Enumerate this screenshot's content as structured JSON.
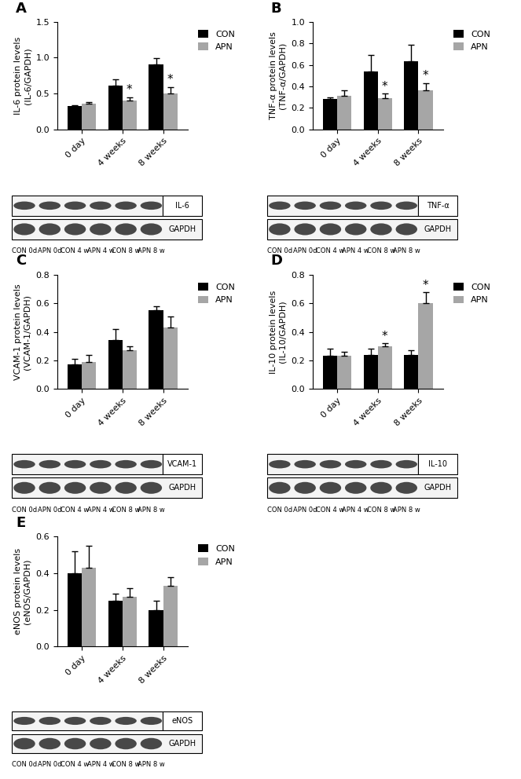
{
  "chart_data": [
    {
      "type": "bar",
      "title": "A",
      "y_label": "IL-6 protein levels\n(IL-6/GAPDH)",
      "categories": [
        "0 day",
        "4 weeks",
        "8 weeks"
      ],
      "series": [
        {
          "name": "CON",
          "color": "#000000",
          "values": [
            0.32,
            0.61,
            0.91
          ],
          "errors": [
            0.02,
            0.09,
            0.08
          ]
        },
        {
          "name": "APN",
          "color": "#a6a6a6",
          "values": [
            0.36,
            0.4,
            0.5
          ],
          "errors": [
            0.02,
            0.05,
            0.09
          ]
        }
      ],
      "ylim": [
        0,
        1.5
      ],
      "yticks": [
        {
          "value": 0,
          "label": "0.0"
        },
        0.5,
        {
          "value": 1,
          "label": "1.0"
        },
        1.5
      ],
      "legend": "upper left",
      "annotations": [
        {
          "text": "*",
          "category": "4 weeks",
          "series": "APN"
        },
        {
          "text": "*",
          "category": "8 weeks",
          "series": "APN"
        }
      ],
      "blot": {
        "bands": [
          "IL-6",
          "GAPDH"
        ],
        "lanes": [
          "CON 0d",
          "APN 0d",
          "CON 4 w",
          "APN 4 w",
          "CON 8 w",
          "APN 8 w"
        ]
      }
    },
    {
      "type": "bar",
      "title": "B",
      "y_label": "TNF-α protein levels\n(TNF-α/GAPDH)",
      "categories": [
        "0 day",
        "4 weeks",
        "8 weeks"
      ],
      "series": [
        {
          "name": "CON",
          "color": "#000000",
          "values": [
            0.28,
            0.54,
            0.63
          ],
          "errors": [
            0.02,
            0.15,
            0.16
          ]
        },
        {
          "name": "APN",
          "color": "#a6a6a6",
          "values": [
            0.31,
            0.29,
            0.36
          ],
          "errors": [
            0.05,
            0.04,
            0.07
          ]
        }
      ],
      "ylim": [
        0,
        1.0
      ],
      "yticks": [
        {
          "value": 0,
          "label": "0.0"
        },
        0.2,
        0.4,
        0.6,
        0.8,
        {
          "value": 1,
          "label": "1.0"
        }
      ],
      "legend": "upper left",
      "annotations": [
        {
          "text": "*",
          "category": "4 weeks",
          "series": "APN"
        },
        {
          "text": "*",
          "category": "8 weeks",
          "series": "APN"
        }
      ],
      "blot": {
        "bands": [
          "TNF-α",
          "GAPDH"
        ],
        "lanes": [
          "CON 0d",
          "APN 0d",
          "CON 4 w",
          "APN 4 w",
          "CON 8 w",
          "APN 8 w"
        ]
      }
    },
    {
      "type": "bar",
      "title": "C",
      "y_label": "VCAM-1 protein levels\n(VCAM-1/GAPDH)",
      "categories": [
        "0 day",
        "4 weeks",
        "8 weeks"
      ],
      "series": [
        {
          "name": "CON",
          "color": "#000000",
          "values": [
            0.17,
            0.34,
            0.55
          ],
          "errors": [
            0.04,
            0.08,
            0.03
          ]
        },
        {
          "name": "APN",
          "color": "#a6a6a6",
          "values": [
            0.19,
            0.27,
            0.43
          ],
          "errors": [
            0.05,
            0.03,
            0.08
          ]
        }
      ],
      "ylim": [
        0,
        0.8
      ],
      "yticks": [
        {
          "value": 0,
          "label": "0.0"
        },
        0.2,
        0.4,
        0.6,
        0.8
      ],
      "legend": "upper left",
      "annotations": [],
      "blot": {
        "bands": [
          "VCAM-1",
          "GAPDH"
        ],
        "lanes": [
          "CON 0d",
          "APN 0d",
          "CON 4 w",
          "APN 4 w",
          "CON 8 w",
          "APN 8 w"
        ]
      }
    },
    {
      "type": "bar",
      "title": "D",
      "y_label": "IL-10 protein levels\n(IL-10/GAPDH)",
      "categories": [
        "0 day",
        "4 weeks",
        "8 weeks"
      ],
      "series": [
        {
          "name": "CON",
          "color": "#000000",
          "values": [
            0.23,
            0.24,
            0.24
          ],
          "errors": [
            0.05,
            0.04,
            0.03
          ]
        },
        {
          "name": "APN",
          "color": "#a6a6a6",
          "values": [
            0.23,
            0.3,
            0.6
          ],
          "errors": [
            0.03,
            0.02,
            0.08
          ]
        }
      ],
      "ylim": [
        0,
        0.8
      ],
      "yticks": [
        {
          "value": 0,
          "label": "0.0"
        },
        0.2,
        0.4,
        0.6,
        0.8
      ],
      "legend": "upper left",
      "annotations": [
        {
          "text": "*",
          "category": "4 weeks",
          "series": "APN"
        },
        {
          "text": "*",
          "category": "8 weeks",
          "series": "APN"
        }
      ],
      "blot": {
        "bands": [
          "IL-10",
          "GAPDH"
        ],
        "lanes": [
          "CON 0d",
          "APN 0d",
          "CON 4 w",
          "APN 4 w",
          "CON 8 w",
          "APN 8 w"
        ]
      }
    },
    {
      "type": "bar",
      "title": "E",
      "y_label": "eNOS protein levels\n(eNOS/GAPDH)",
      "categories": [
        "0 day",
        "4 weeks",
        "8 weeks"
      ],
      "series": [
        {
          "name": "CON",
          "color": "#000000",
          "values": [
            0.4,
            0.25,
            0.2
          ],
          "errors": [
            0.12,
            0.04,
            0.05
          ]
        },
        {
          "name": "APN",
          "color": "#a6a6a6",
          "values": [
            0.43,
            0.27,
            0.33
          ],
          "errors": [
            0.12,
            0.05,
            0.05
          ]
        }
      ],
      "ylim": [
        0,
        0.6
      ],
      "yticks": [
        {
          "value": 0,
          "label": "0.0"
        },
        0.2,
        0.4,
        0.6
      ],
      "legend": "upper left",
      "annotations": [],
      "blot": {
        "bands": [
          "eNOS",
          "GAPDH"
        ],
        "lanes": [
          "CON 0d",
          "APN 0d",
          "CON 4 w",
          "APN 4 w",
          "CON 8 w",
          "APN 8 w"
        ]
      }
    }
  ]
}
